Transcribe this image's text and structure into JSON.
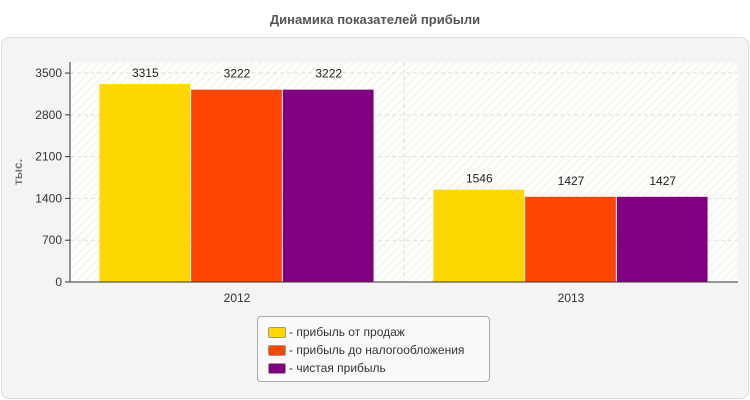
{
  "chart_data": {
    "type": "bar",
    "title": "Динамика показателей прибыли",
    "ylabel": "тыс.",
    "xlabel": "",
    "categories": [
      "2012",
      "2013"
    ],
    "ylim": [
      0,
      3685
    ],
    "yticks": [
      0,
      700,
      1400,
      2100,
      2800,
      3500
    ],
    "grid": true,
    "legend_position": "bottom",
    "series": [
      {
        "name": "- прибыль от продаж",
        "color": "#FFD700",
        "values": [
          3315,
          1546
        ]
      },
      {
        "name": "- прибыль до налогообложения",
        "color": "#FF4500",
        "values": [
          3222,
          1427
        ]
      },
      {
        "name": "- чистая прибыль",
        "color": "#800080",
        "values": [
          3222,
          1427
        ]
      }
    ]
  }
}
